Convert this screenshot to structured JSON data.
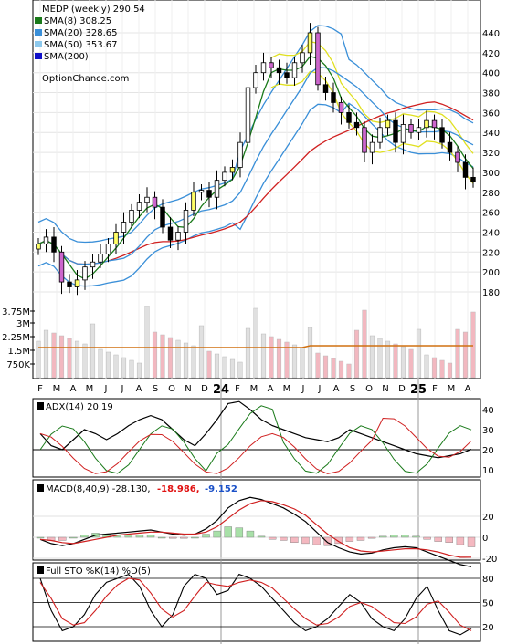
{
  "price_panel": {
    "symbol_title": "MEDP (weekly) 290.54",
    "legend": [
      {
        "label": "SMA(8) 308.25",
        "color": "#1a7a1a"
      },
      {
        "label": "SMA(20) 328.65",
        "color": "#3a8fd8"
      },
      {
        "label": "SMA(50) 353.67",
        "color": "#8cc8ec"
      },
      {
        "label": "SMA(200)",
        "color": "#1010c8"
      }
    ],
    "source": "OptionChance.com",
    "y_ticks": [
      "440",
      "420",
      "400",
      "380",
      "360",
      "340",
      "320",
      "300",
      "280",
      "260",
      "240",
      "220",
      "200",
      "180"
    ],
    "volume_ticks": [
      "3.75M",
      "3M",
      "2.25M",
      "1.5M",
      "750K"
    ]
  },
  "x_axis": {
    "labels": [
      {
        "text": "F",
        "bold": false
      },
      {
        "text": "M",
        "bold": false
      },
      {
        "text": "A",
        "bold": false
      },
      {
        "text": "M",
        "bold": false
      },
      {
        "text": "J",
        "bold": false
      },
      {
        "text": "J",
        "bold": false
      },
      {
        "text": "A",
        "bold": false
      },
      {
        "text": "S",
        "bold": false
      },
      {
        "text": "O",
        "bold": false
      },
      {
        "text": "N",
        "bold": false
      },
      {
        "text": "D",
        "bold": false
      },
      {
        "text": "24",
        "bold": true
      },
      {
        "text": "F",
        "bold": false
      },
      {
        "text": "M",
        "bold": false
      },
      {
        "text": "A",
        "bold": false
      },
      {
        "text": "M",
        "bold": false
      },
      {
        "text": "J",
        "bold": false
      },
      {
        "text": "J",
        "bold": false
      },
      {
        "text": "A",
        "bold": false
      },
      {
        "text": "S",
        "bold": false
      },
      {
        "text": "O",
        "bold": false
      },
      {
        "text": "N",
        "bold": false
      },
      {
        "text": "D",
        "bold": false
      },
      {
        "text": "25",
        "bold": true
      },
      {
        "text": "F",
        "bold": false
      },
      {
        "text": "M",
        "bold": false
      },
      {
        "text": "A",
        "bold": false
      }
    ]
  },
  "adx_panel": {
    "title": "ADX(14) 20.19",
    "y_ticks": [
      "40",
      "30",
      "20",
      "10"
    ]
  },
  "macd_panel": {
    "title": "MACD(8,40,9) -28.130,",
    "v1": "-18.986,",
    "v1_color": "#e01010",
    "v2": "-9.152",
    "v2_color": "#1a50c8",
    "y_ticks": [
      "20",
      "0",
      "-20"
    ]
  },
  "sto_panel": {
    "title": "Full STO %K(14) %D(5)",
    "y_ticks": [
      "80",
      "50",
      "20"
    ]
  },
  "chart_data": {
    "type": "candlestick",
    "series_description": "MEDP weekly closes (approximate)",
    "ylim": [
      160,
      460
    ],
    "closes": [
      228,
      235,
      220,
      190,
      185,
      192,
      205,
      210,
      218,
      228,
      240,
      250,
      262,
      270,
      275,
      265,
      245,
      232,
      240,
      262,
      280,
      282,
      275,
      292,
      300,
      305,
      330,
      385,
      400,
      410,
      405,
      400,
      395,
      410,
      420,
      440,
      388,
      380,
      370,
      360,
      350,
      345,
      320,
      330,
      345,
      352,
      330,
      348,
      340,
      345,
      352,
      345,
      330,
      320,
      310,
      295,
      290.54
    ],
    "adx": [
      28,
      22,
      20,
      25,
      30,
      28,
      25,
      28,
      32,
      35,
      37,
      35,
      30,
      25,
      22,
      28,
      35,
      43,
      44,
      40,
      35,
      32,
      30,
      28,
      26,
      25,
      24,
      26,
      30,
      28,
      26,
      24,
      22,
      20,
      18,
      17,
      16,
      17,
      18,
      20.19
    ],
    "macd": {
      "macd": [
        -2,
        -6,
        -8,
        -6,
        -2,
        2,
        3,
        4,
        5,
        6,
        7,
        5,
        3,
        2,
        3,
        8,
        16,
        28,
        35,
        38,
        36,
        32,
        28,
        22,
        15,
        5,
        -5,
        -10,
        -14,
        -16,
        -15,
        -12,
        -10,
        -9,
        -10,
        -14,
        -18,
        -22,
        -26,
        -28.13
      ],
      "signal": [
        -2,
        -3,
        -5,
        -6,
        -4,
        -2,
        0,
        2,
        3,
        4,
        5,
        5,
        4,
        3,
        3,
        5,
        10,
        18,
        26,
        32,
        35,
        34,
        31,
        27,
        21,
        12,
        3,
        -4,
        -10,
        -13,
        -14,
        -13,
        -12,
        -11,
        -11,
        -12,
        -14,
        -17,
        -19,
        -18.986
      ],
      "hist": [
        0,
        -3,
        -3,
        0,
        2,
        4,
        3,
        2,
        2,
        2,
        2,
        0,
        -1,
        -1,
        0,
        3,
        6,
        10,
        9,
        6,
        1,
        -2,
        -3,
        -5,
        -6,
        -7,
        -8,
        -6,
        -4,
        -3,
        -1,
        1,
        2,
        2,
        1,
        -2,
        -4,
        -5,
        -7,
        -9.152
      ]
    },
    "stochastic": {
      "k": [
        80,
        40,
        15,
        20,
        35,
        60,
        75,
        80,
        85,
        70,
        40,
        20,
        35,
        70,
        85,
        80,
        60,
        65,
        85,
        80,
        70,
        55,
        40,
        25,
        15,
        20,
        30,
        45,
        60,
        50,
        30,
        20,
        15,
        30,
        55,
        70,
        40,
        15,
        10,
        18
      ],
      "d": [
        75,
        55,
        30,
        22,
        25,
        40,
        58,
        72,
        80,
        78,
        62,
        42,
        32,
        40,
        58,
        75,
        72,
        70,
        75,
        78,
        75,
        68,
        55,
        42,
        30,
        22,
        24,
        32,
        45,
        50,
        45,
        35,
        25,
        24,
        32,
        48,
        52,
        38,
        22,
        15
      ]
    }
  }
}
